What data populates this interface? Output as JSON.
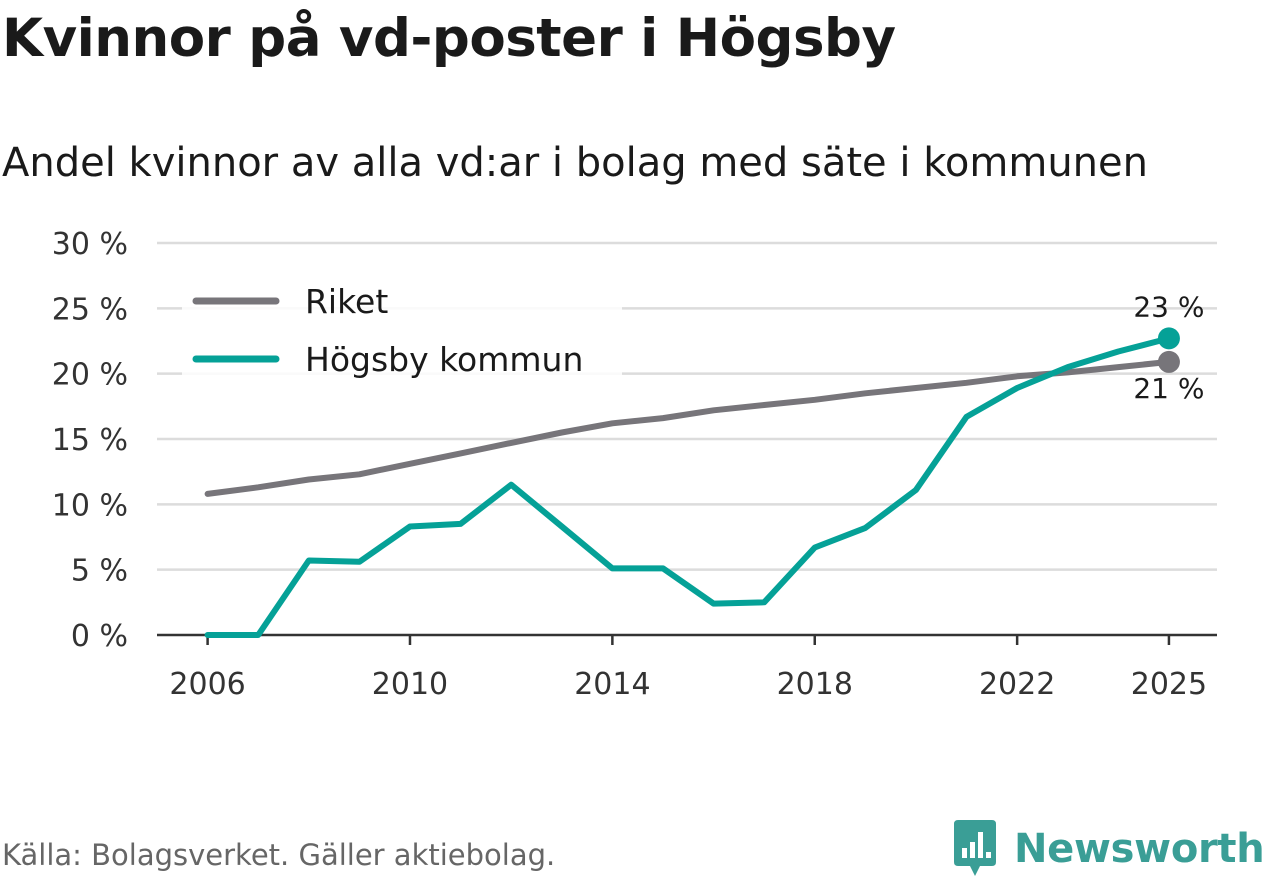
{
  "title": "Kvinnor på vd-poster i Högsby",
  "subtitle": "Andel kvinnor av alla vd:ar i bolag med säte i kommunen",
  "source": "Källa: Bolagsverket. Gäller aktiebolag.",
  "brand": {
    "name": "Newsworthy",
    "logo_icon": "newsworthy-logo-icon"
  },
  "chart_data": {
    "type": "line",
    "title": "Kvinnor på vd-poster i Högsby",
    "subtitle": "Andel kvinnor av alla vd:ar i bolag med säte i kommunen",
    "xlabel": "",
    "ylabel": "",
    "xlim": [
      2005.0,
      2025.95
    ],
    "ylim": [
      0,
      30
    ],
    "x_ticks": [
      2006,
      2010,
      2014,
      2018,
      2022,
      2025
    ],
    "x_tick_labels": [
      "2006",
      "2010",
      "2014",
      "2018",
      "2022",
      "2025"
    ],
    "y_ticks": [
      0,
      5,
      10,
      15,
      20,
      25,
      30
    ],
    "y_tick_labels": [
      "0 %",
      "5 %",
      "10 %",
      "15 %",
      "20 %",
      "25 %",
      "30 %"
    ],
    "grid": true,
    "legend": "top-left",
    "x": [
      2006,
      2007,
      2008,
      2009,
      2010,
      2011,
      2012,
      2013,
      2014,
      2015,
      2016,
      2017,
      2018,
      2019,
      2020,
      2021,
      2022,
      2023,
      2024,
      2025
    ],
    "series": [
      {
        "name": "Riket",
        "color": "#77757a",
        "values": [
          10.8,
          11.3,
          11.9,
          12.3,
          13.1,
          13.9,
          14.7,
          15.5,
          16.2,
          16.6,
          17.2,
          17.6,
          18.0,
          18.5,
          18.9,
          19.3,
          19.8,
          20.1,
          20.5,
          20.9
        ]
      },
      {
        "name": "Högsby kommun",
        "color": "#05a197",
        "values": [
          0.0,
          0.0,
          5.7,
          5.6,
          8.3,
          8.5,
          11.5,
          8.3,
          5.1,
          5.1,
          2.4,
          2.5,
          6.7,
          8.2,
          11.1,
          16.7,
          18.9,
          20.5,
          21.7,
          22.7
        ]
      }
    ],
    "annotations": [
      {
        "series": "Högsby kommun",
        "x": 2025,
        "label": "23 %",
        "position": "above"
      },
      {
        "series": "Riket",
        "x": 2025,
        "label": "21 %",
        "position": "below"
      }
    ]
  }
}
